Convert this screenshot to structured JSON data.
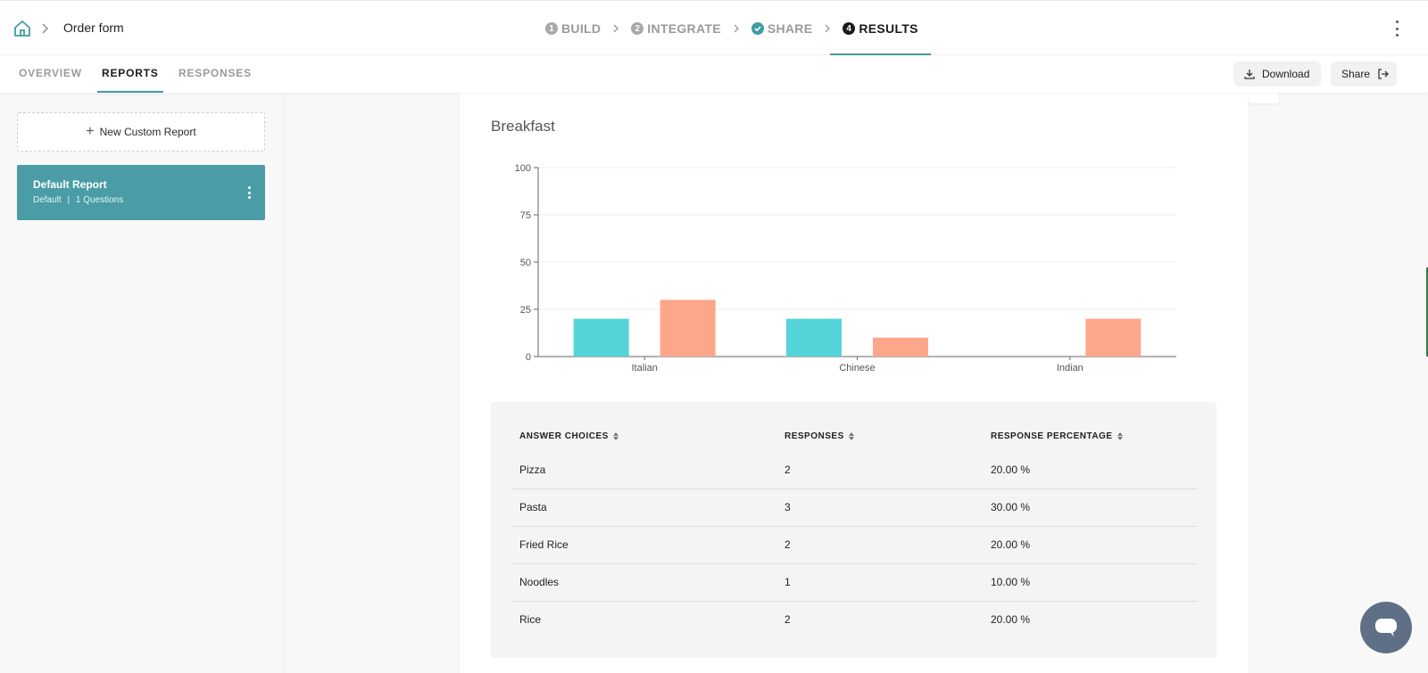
{
  "header": {
    "breadcrumb_title": "Order form",
    "steps": [
      {
        "num": "1",
        "label": "BUILD"
      },
      {
        "num": "2",
        "label": "INTEGRATE"
      },
      {
        "num": "",
        "label": "SHARE"
      },
      {
        "num": "4",
        "label": "RESULTS"
      }
    ]
  },
  "subnav": {
    "tabs": [
      "OVERVIEW",
      "REPORTS",
      "RESPONSES"
    ],
    "download_label": "Download",
    "share_label": "Share"
  },
  "sidebar": {
    "new_report_label": "New Custom Report",
    "report": {
      "name": "Default Report",
      "type": "Default",
      "questions": "1 Questions"
    }
  },
  "report": {
    "title": "Breakfast",
    "table": {
      "headers": [
        "ANSWER CHOICES",
        "RESPONSES",
        "RESPONSE PERCENTAGE"
      ],
      "rows": [
        {
          "choice": "Pizza",
          "responses": "2",
          "percentage": "20.00 %"
        },
        {
          "choice": "Pasta",
          "responses": "3",
          "percentage": "30.00 %"
        },
        {
          "choice": "Fried Rice",
          "responses": "2",
          "percentage": "20.00 %"
        },
        {
          "choice": "Noodles",
          "responses": "1",
          "percentage": "10.00 %"
        },
        {
          "choice": "Rice",
          "responses": "2",
          "percentage": "20.00 %"
        }
      ]
    }
  },
  "colors": {
    "accent": "#3f9ca5",
    "series_a": "#54d4d9",
    "series_b": "#fca68c"
  },
  "chart_data": {
    "type": "bar",
    "categories": [
      "Italian",
      "Chinese",
      "Indian"
    ],
    "series": [
      {
        "values": [
          20,
          20,
          0
        ]
      },
      {
        "values": [
          30,
          10,
          20
        ]
      }
    ],
    "ylim": [
      0,
      100
    ],
    "yticks": [
      0,
      25,
      50,
      75,
      100
    ],
    "grid": true
  }
}
